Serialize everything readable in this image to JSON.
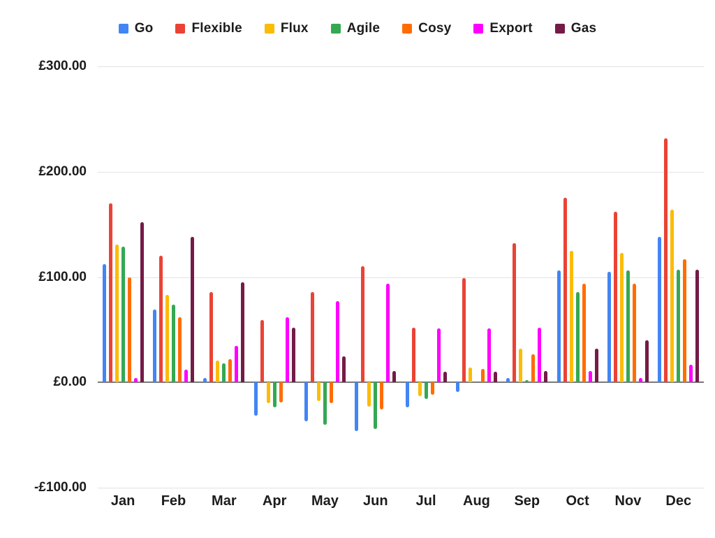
{
  "chart_data": {
    "type": "bar",
    "title": "",
    "xlabel": "",
    "ylabel": "",
    "ylim": [
      -100,
      300
    ],
    "grid": true,
    "legend_position": "top",
    "currency": "GBP",
    "y_ticks": [
      {
        "label": "£300.00",
        "value": 300
      },
      {
        "label": "£200.00",
        "value": 200
      },
      {
        "label": "£100.00",
        "value": 100
      },
      {
        "label": "£0.00",
        "value": 0
      },
      {
        "label": "-£100.00",
        "value": -100
      }
    ],
    "categories": [
      "Jan",
      "Feb",
      "Mar",
      "Apr",
      "May",
      "Jun",
      "Jul",
      "Aug",
      "Sep",
      "Oct",
      "Nov",
      "Dec"
    ],
    "series": [
      {
        "name": "Go",
        "color": "#4285F4",
        "values": [
          112,
          69,
          4,
          -32,
          -37,
          -46,
          -24,
          -9,
          4,
          106,
          105,
          138
        ]
      },
      {
        "name": "Flexible",
        "color": "#EA4335",
        "values": [
          170,
          120,
          86,
          59,
          86,
          110,
          52,
          99,
          132,
          175,
          162,
          232
        ]
      },
      {
        "name": "Flux",
        "color": "#FBBC04",
        "values": [
          131,
          83,
          21,
          -20,
          -18,
          -23,
          -13,
          14,
          32,
          125,
          123,
          164
        ]
      },
      {
        "name": "Agile",
        "color": "#34A853",
        "values": [
          129,
          74,
          18,
          -24,
          -40,
          -44,
          -16,
          0,
          2,
          86,
          106,
          107
        ]
      },
      {
        "name": "Cosy",
        "color": "#FF6D01",
        "values": [
          100,
          62,
          22,
          -19,
          -20,
          -26,
          -12,
          13,
          27,
          94,
          94,
          117
        ]
      },
      {
        "name": "Export",
        "color": "#FF00FF",
        "values": [
          4,
          12,
          35,
          62,
          77,
          94,
          51,
          51,
          52,
          11,
          4,
          17
        ]
      },
      {
        "name": "Gas",
        "color": "#741B47",
        "values": [
          152,
          138,
          95,
          52,
          25,
          11,
          10,
          10,
          11,
          32,
          40,
          107
        ]
      }
    ]
  },
  "colors": {
    "background": "#ffffff",
    "gridline": "#e2e2e2",
    "zero_line": "#797979",
    "text": "#1c1c1c"
  }
}
